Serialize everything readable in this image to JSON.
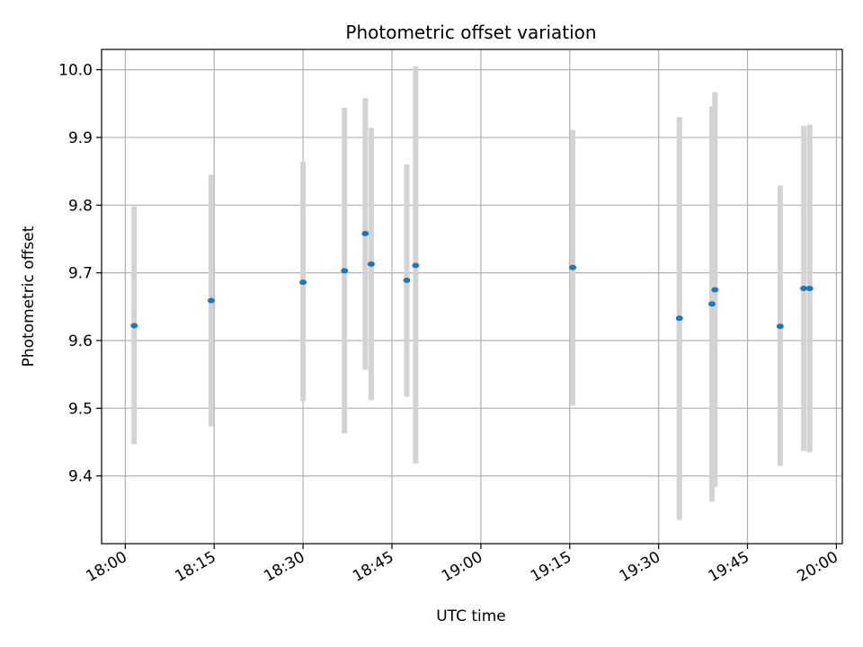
{
  "chart_data": {
    "type": "scatter",
    "title": "Photometric offset variation",
    "xlabel": "UTC time",
    "ylabel": "Photometric offset",
    "x_unit": "UTC time",
    "xlim": [
      "17:56",
      "20:01"
    ],
    "ylim": [
      9.3,
      10.03
    ],
    "x_ticks": [
      "18:00",
      "18:15",
      "18:30",
      "18:45",
      "19:00",
      "19:15",
      "19:30",
      "19:45",
      "20:00"
    ],
    "y_ticks": [
      9.4,
      9.5,
      9.6,
      9.7,
      9.8,
      9.9,
      10.0
    ],
    "grid": true,
    "colors": {
      "marker": "#1f77b4",
      "errorbar": "#d3d3d3"
    },
    "points": [
      {
        "x": "18:01:30",
        "y": 9.622,
        "ylow": 9.447,
        "yhigh": 9.798
      },
      {
        "x": "18:14:30",
        "y": 9.659,
        "ylow": 9.473,
        "yhigh": 9.845
      },
      {
        "x": "18:30:00",
        "y": 9.686,
        "ylow": 9.51,
        "yhigh": 9.864
      },
      {
        "x": "18:37:00",
        "y": 9.703,
        "ylow": 9.463,
        "yhigh": 9.944
      },
      {
        "x": "18:40:30",
        "y": 9.758,
        "ylow": 9.557,
        "yhigh": 9.958
      },
      {
        "x": "18:41:30",
        "y": 9.713,
        "ylow": 9.512,
        "yhigh": 9.914
      },
      {
        "x": "18:47:30",
        "y": 9.689,
        "ylow": 9.517,
        "yhigh": 9.86
      },
      {
        "x": "18:49:00",
        "y": 9.711,
        "ylow": 9.418,
        "yhigh": 10.005
      },
      {
        "x": "19:15:30",
        "y": 9.708,
        "ylow": 9.504,
        "yhigh": 9.911
      },
      {
        "x": "19:33:30",
        "y": 9.633,
        "ylow": 9.335,
        "yhigh": 9.93
      },
      {
        "x": "19:39:00",
        "y": 9.654,
        "ylow": 9.362,
        "yhigh": 9.946
      },
      {
        "x": "19:39:30",
        "y": 9.675,
        "ylow": 9.384,
        "yhigh": 9.967
      },
      {
        "x": "19:50:30",
        "y": 9.621,
        "ylow": 9.415,
        "yhigh": 9.829
      },
      {
        "x": "19:54:30",
        "y": 9.677,
        "ylow": 9.437,
        "yhigh": 9.917
      },
      {
        "x": "19:55:30",
        "y": 9.677,
        "ylow": 9.435,
        "yhigh": 9.919
      }
    ]
  }
}
